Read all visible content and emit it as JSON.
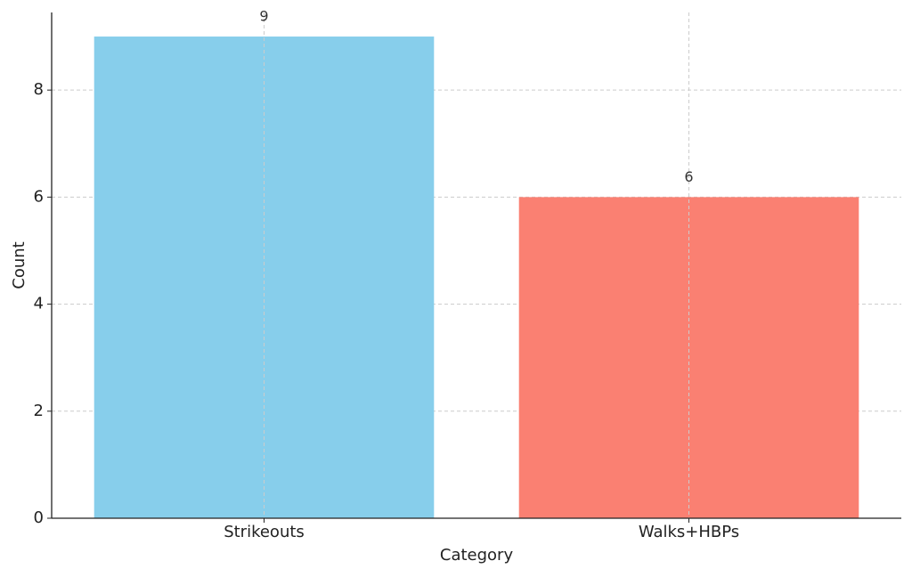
{
  "chart_data": {
    "type": "bar",
    "x_label": "Category",
    "y_label": "Count",
    "categories": [
      "Strikeouts",
      "Walks+HBPs"
    ],
    "values": [
      9,
      6
    ],
    "colors": [
      "#87ceeb",
      "#fa8072"
    ],
    "ylim": [
      0,
      9.45
    ],
    "yticks": [
      0,
      2,
      4,
      6,
      8
    ],
    "grid": true
  }
}
